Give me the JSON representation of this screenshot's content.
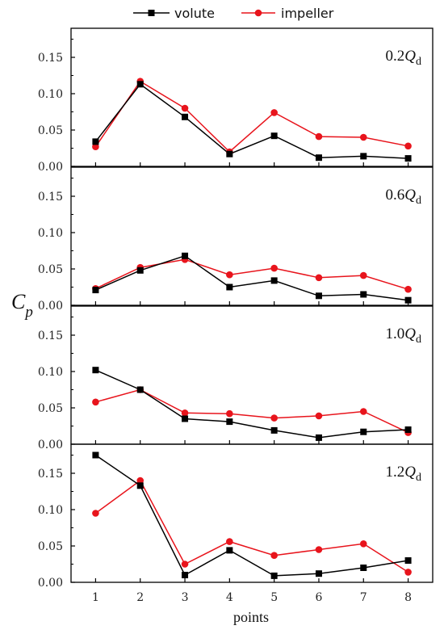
{
  "chart_data": {
    "type": "line",
    "x_label": "points",
    "y_label": "C",
    "y_label_sub": "p",
    "x": [
      1,
      2,
      3,
      4,
      5,
      6,
      7,
      8
    ],
    "x_tick_labels": [
      "1",
      "2",
      "3",
      "4",
      "5",
      "6",
      "7",
      "8"
    ],
    "ylim": [
      0,
      0.19
    ],
    "y_tick_values": [
      0,
      0.05,
      0.1,
      0.15
    ],
    "y_tick_labels": [
      "0.00",
      "0.05",
      "0.10",
      "0.15"
    ],
    "legend": {
      "placement": "top-center",
      "entries": [
        {
          "name": "volute",
          "color": "#000000",
          "marker": "square"
        },
        {
          "name": "impeller",
          "color": "#e8141c",
          "marker": "circle"
        }
      ]
    },
    "panels": [
      {
        "label_prefix": "0.2",
        "label_q": "Q",
        "label_sub": "d",
        "series": [
          {
            "name": "volute",
            "values": [
              0.034,
              0.113,
              0.068,
              0.017,
              0.042,
              0.012,
              0.014,
              0.011
            ]
          },
          {
            "name": "impeller",
            "values": [
              0.027,
              0.117,
              0.08,
              0.02,
              0.074,
              0.041,
              0.04,
              0.028
            ]
          }
        ]
      },
      {
        "label_prefix": "0.6",
        "label_q": "Q",
        "label_sub": "d",
        "series": [
          {
            "name": "volute",
            "values": [
              0.021,
              0.048,
              0.068,
              0.025,
              0.034,
              0.013,
              0.015,
              0.007
            ]
          },
          {
            "name": "impeller",
            "values": [
              0.023,
              0.052,
              0.063,
              0.042,
              0.051,
              0.038,
              0.041,
              0.022
            ]
          }
        ]
      },
      {
        "label_prefix": "1.0",
        "label_q": "Q",
        "label_sub": "d",
        "series": [
          {
            "name": "volute",
            "values": [
              0.102,
              0.075,
              0.035,
              0.031,
              0.019,
              0.009,
              0.017,
              0.02
            ]
          },
          {
            "name": "impeller",
            "values": [
              0.058,
              0.075,
              0.043,
              0.042,
              0.036,
              0.039,
              0.045,
              0.016
            ]
          }
        ]
      },
      {
        "label_prefix": "1.2",
        "label_q": "Q",
        "label_sub": "d",
        "series": [
          {
            "name": "volute",
            "values": [
              0.175,
              0.133,
              0.01,
              0.044,
              0.009,
              0.012,
              0.02,
              0.03
            ]
          },
          {
            "name": "impeller",
            "values": [
              0.095,
              0.14,
              0.025,
              0.056,
              0.037,
              0.045,
              0.053,
              0.014
            ]
          }
        ]
      }
    ]
  }
}
